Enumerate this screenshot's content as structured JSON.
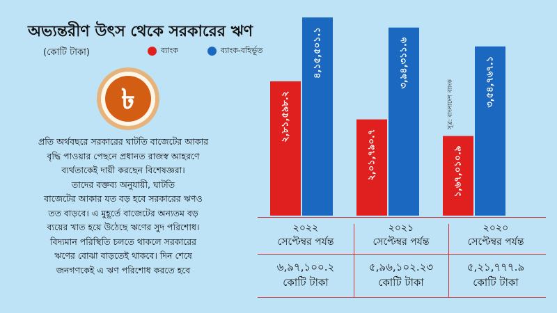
{
  "title": "অভ্যন্তরীণ উৎস থেকে সরকারের ঋণ",
  "unit": "(কোটি টাকা)",
  "legend": {
    "bank": "ব্যাংক",
    "nonbank": "ব্যাংক-বহির্ভূত"
  },
  "colors": {
    "background": "#bfe3f6",
    "bank": "#e0201e",
    "nonbank": "#1a68c0",
    "coin_outer": "#e0a35a",
    "coin_inner": "#d35e13",
    "rule": "#cc3333"
  },
  "icon": "taka-coin-icon",
  "coin_symbol": "৳",
  "paragraph": [
    "প্রতি অর্থবছরে সরকারের ঘাটতি বাজেটের আকার",
    "বৃদ্ধি পাওয়ার পেছনে প্রধানত রাজস্ব আহরণে",
    "ব্যর্থতাকেই দায়ী করছেন বিশেষজ্ঞরা।",
    "তাদের বক্তব্য অনুযায়ী, ঘাটতি",
    "বাজেটের আকার যত বড় হবে সরকারের ঋণও",
    "তত বাড়বে। এ মুহূর্তে বাজেটের অন্যতম বড়",
    "ব্যয়ের খাত হয়ে উঠেছে ঋণের সুদ পরিশোধ।",
    "বিদ্যমান পরিস্থিতি চলতে থাকলে সরকারের",
    "ঋণের বোঝা বাড়তেই থাকবে। দিন শেষে",
    "জনগণকেই এ ঋণ পরিশোধ করতে হবে"
  ],
  "source": "সূত্র: বাংলাদেশ ব্যাংক",
  "chart_data": {
    "type": "bar",
    "categories": [
      "২০২২",
      "২০২১",
      "২০২০"
    ],
    "category_sub": "সেপ্টেম্বর পর্যন্ত",
    "series": [
      {
        "name": "ব্যাংক",
        "values": [
          281598.2,
          201790.7,
          167010.9
        ],
        "labels": [
          "২,৮১,৫৯৮.২",
          "২,০১,৭৯০.৭",
          "১,৬৭,০১০.৯"
        ]
      },
      {
        "name": "ব্যাংক-বহির্ভূত",
        "values": [
          415501.1,
          394311.6,
          354767.1
        ],
        "labels": [
          "৪,১৫,৫০১.১",
          "৩,৯৪,৩১১.৬",
          "৩,৫৪,৭৬৭.১"
        ]
      }
    ],
    "totals": [
      "৬,৯৭,১০০.২",
      "৫,৯৬,১০২.২৩",
      "৫,২১,৭৭৭.৯"
    ],
    "totals_unit": "কোটি টাকা",
    "ylim": [
      0,
      420000
    ],
    "legend_position": "top"
  }
}
